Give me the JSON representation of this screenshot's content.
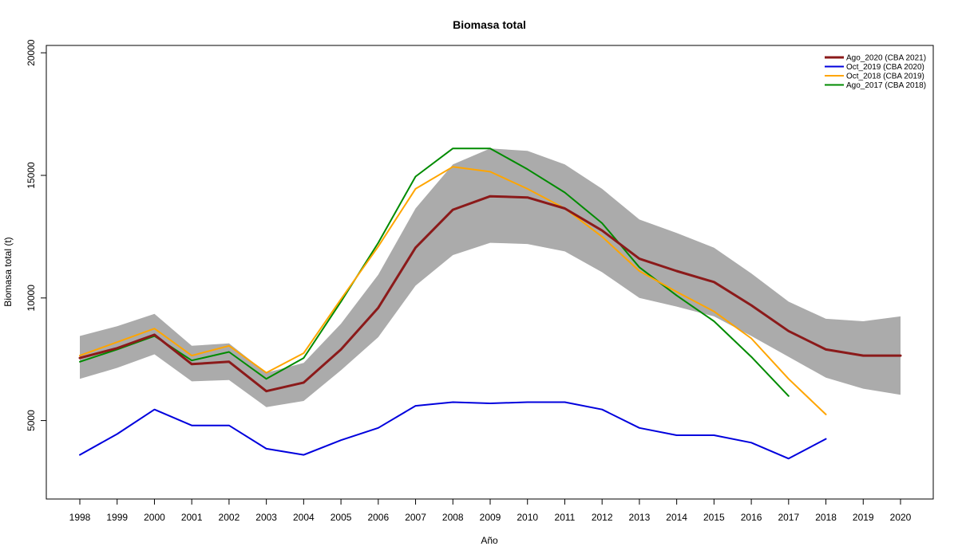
{
  "chart_data": {
    "type": "line",
    "title": "Biomasa total",
    "xlabel": "Año",
    "ylabel": "Biomasa total (t)",
    "x": [
      1998,
      1999,
      2000,
      2001,
      2002,
      2003,
      2004,
      2005,
      2006,
      2007,
      2008,
      2009,
      2010,
      2011,
      2012,
      2013,
      2014,
      2015,
      2016,
      2017,
      2018,
      2019,
      2020
    ],
    "ylim": [
      1800,
      20300
    ],
    "yticks": [
      5000,
      10000,
      15000,
      20000
    ],
    "grid": false,
    "legend_position": "top-right",
    "band": {
      "x": [
        1998,
        1999,
        2000,
        2001,
        2002,
        2003,
        2004,
        2005,
        2006,
        2007,
        2008,
        2009,
        2010,
        2011,
        2012,
        2013,
        2014,
        2015,
        2016,
        2017,
        2018,
        2019,
        2020
      ],
      "upper": [
        8450,
        8850,
        9350,
        8050,
        8150,
        6950,
        7350,
        8950,
        10950,
        13650,
        15450,
        16100,
        16000,
        15450,
        14450,
        13200,
        12650,
        12050,
        11000,
        9850,
        9150,
        9050,
        9250
      ],
      "lower": [
        6700,
        7150,
        7700,
        6600,
        6650,
        5550,
        5800,
        7050,
        8400,
        10500,
        11750,
        12250,
        12200,
        11900,
        11050,
        10000,
        9650,
        9250,
        8450,
        7600,
        6750,
        6300,
        6050
      ],
      "color": "#ababab"
    },
    "series": [
      {
        "name": "Ago_2020 (CBA 2021)",
        "color": "#8b1a1a",
        "width": 3,
        "x": [
          1998,
          1999,
          2000,
          2001,
          2002,
          2003,
          2004,
          2005,
          2006,
          2007,
          2008,
          2009,
          2010,
          2011,
          2012,
          2013,
          2014,
          2015,
          2016,
          2017,
          2018,
          2019,
          2020
        ],
        "values": [
          7550,
          7950,
          8500,
          7300,
          7400,
          6200,
          6550,
          7900,
          9600,
          12050,
          13600,
          14150,
          14100,
          13650,
          12750,
          11600,
          11100,
          10650,
          9700,
          8650,
          7900,
          7650,
          7650
        ]
      },
      {
        "name": "Oct_2019 (CBA 2020)",
        "color": "#0000dd",
        "width": 2,
        "x": [
          1998,
          1999,
          2000,
          2001,
          2002,
          2003,
          2004,
          2005,
          2006,
          2007,
          2008,
          2009,
          2010,
          2011,
          2012,
          2013,
          2014,
          2015,
          2016,
          2017,
          2018
        ],
        "values": [
          3600,
          4450,
          5450,
          4800,
          4800,
          3850,
          3600,
          4200,
          4700,
          5600,
          5750,
          5700,
          5750,
          5750,
          5450,
          4700,
          4400,
          4400,
          4100,
          3450,
          4250
        ]
      },
      {
        "name": "Oct_2018 (CBA 2019)",
        "color": "#ffa500",
        "width": 2,
        "x": [
          1998,
          1999,
          2000,
          2001,
          2002,
          2003,
          2004,
          2005,
          2006,
          2007,
          2008,
          2009,
          2010,
          2011,
          2012,
          2013,
          2014,
          2015,
          2016,
          2017,
          2018
        ],
        "values": [
          7650,
          8200,
          8750,
          7650,
          8050,
          6950,
          7750,
          9950,
          12100,
          14450,
          15350,
          15150,
          14450,
          13650,
          12500,
          11100,
          10250,
          9450,
          8350,
          6700,
          5250
        ]
      },
      {
        "name": "Ago_2017 (CBA 2018)",
        "color": "#008b00",
        "width": 2,
        "x": [
          1998,
          1999,
          2000,
          2001,
          2002,
          2003,
          2004,
          2005,
          2006,
          2007,
          2008,
          2009,
          2010,
          2011,
          2012,
          2013,
          2014,
          2015,
          2016,
          2017
        ],
        "values": [
          7400,
          7900,
          8450,
          7450,
          7800,
          6700,
          7550,
          9850,
          12250,
          14950,
          16100,
          16100,
          15250,
          14300,
          13050,
          11250,
          10100,
          9050,
          7600,
          6000
        ]
      }
    ]
  }
}
